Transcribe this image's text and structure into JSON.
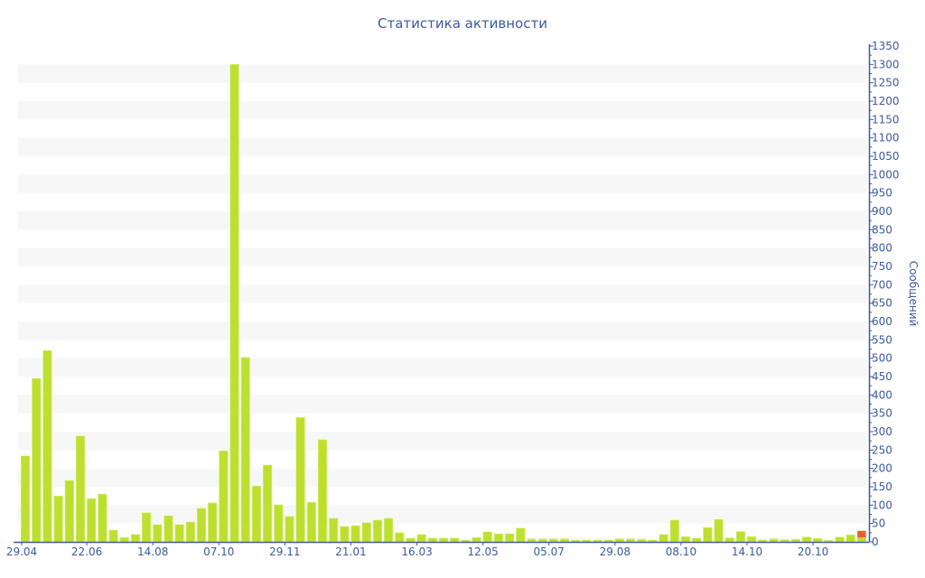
{
  "chart_data": {
    "type": "bar",
    "title": "Статистика активности",
    "ylabel": "Сообщений",
    "xlabel": "",
    "ylim": [
      0,
      1350
    ],
    "y_tick_step": 50,
    "y_axis_side": "right",
    "grid": "alternating horizontal bands",
    "x_tick_labels": [
      "29.04",
      "22.06",
      "14.08",
      "07.10",
      "29.11",
      "21.01",
      "16.03",
      "12.05",
      "05.07",
      "29.08",
      "08.10",
      "14.10",
      "20.10"
    ],
    "x_tick_every": 6,
    "colors": {
      "bar": "#bde030",
      "highlight": "#e8602c",
      "axis": "#3d5a9e",
      "band": "#f7f7f7"
    },
    "values": [
      234,
      445,
      521,
      125,
      167,
      288,
      118,
      130,
      32,
      12,
      20,
      79,
      47,
      71,
      47,
      54,
      91,
      106,
      248,
      1300,
      502,
      152,
      209,
      101,
      69,
      339,
      108,
      278,
      64,
      42,
      44,
      52,
      59,
      64,
      25,
      10,
      20,
      10,
      10,
      10,
      5,
      12,
      27,
      22,
      22,
      37,
      8,
      8,
      8,
      8,
      5,
      5,
      5,
      5,
      8,
      8,
      7,
      5,
      20,
      59,
      14,
      10,
      39,
      61,
      11,
      28,
      14,
      5,
      8,
      6,
      7,
      13,
      9,
      4,
      13,
      19,
      12
    ],
    "last_bar_highlight_value": 18
  }
}
